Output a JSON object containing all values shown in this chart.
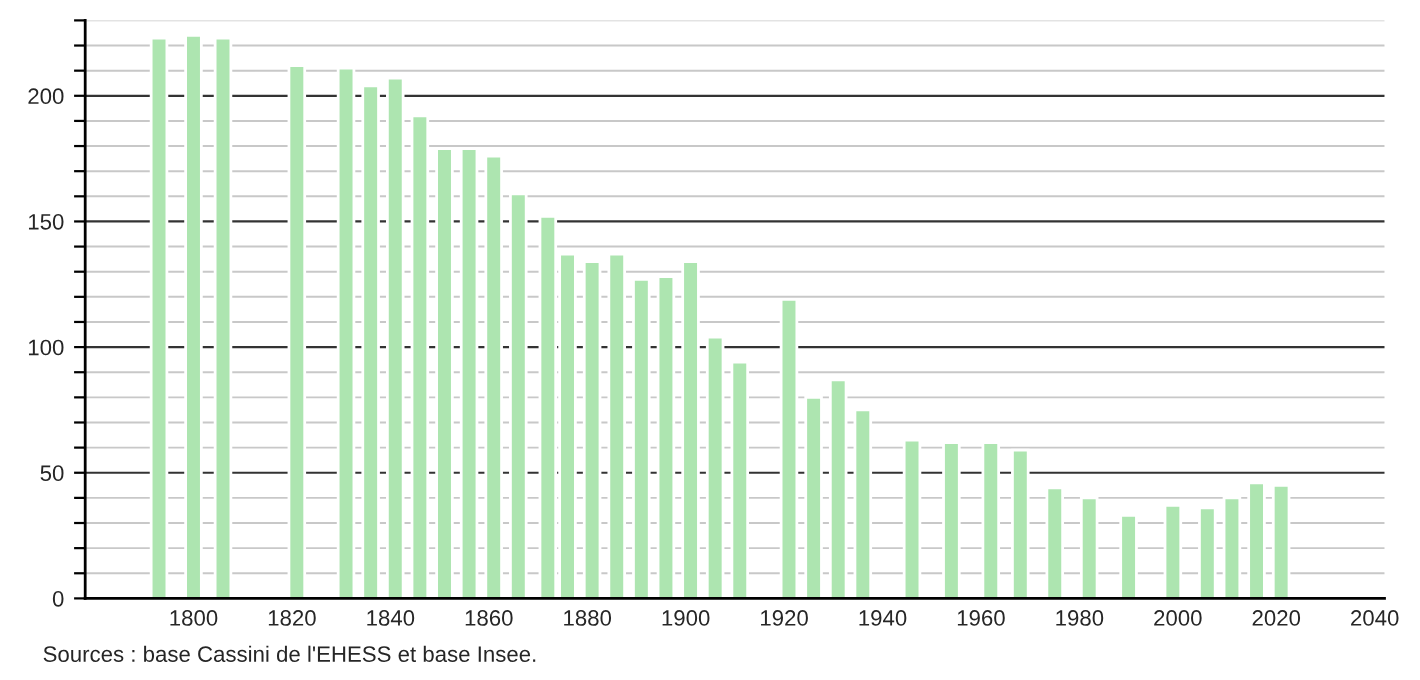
{
  "chart_data": {
    "type": "bar",
    "x": [
      1793,
      1800,
      1806,
      1821,
      1831,
      1836,
      1841,
      1846,
      1851,
      1856,
      1861,
      1866,
      1872,
      1876,
      1881,
      1886,
      1891,
      1896,
      1901,
      1906,
      1911,
      1921,
      1926,
      1931,
      1936,
      1946,
      1954,
      1962,
      1968,
      1975,
      1982,
      1990,
      1999,
      2006,
      2011,
      2016,
      2021
    ],
    "values": [
      223,
      224,
      223,
      212,
      211,
      204,
      207,
      192,
      179,
      179,
      176,
      161,
      152,
      137,
      134,
      137,
      127,
      128,
      134,
      104,
      94,
      119,
      80,
      87,
      75,
      63,
      62,
      62,
      59,
      44,
      40,
      33,
      37,
      36,
      40,
      46,
      45
    ],
    "color": "#ade5b0",
    "xlim": [
      1778,
      2042
    ],
    "xticks": [
      1800,
      1820,
      1840,
      1860,
      1880,
      1900,
      1920,
      1940,
      1960,
      1980,
      2000,
      2020,
      2040
    ],
    "ylim": [
      0,
      230
    ],
    "yticks": [
      0,
      {
        "value": 10,
        "label": null
      },
      {
        "value": 20,
        "label": null
      },
      {
        "value": 30,
        "label": null
      },
      {
        "value": 40,
        "label": null
      },
      50,
      {
        "value": 60,
        "label": null
      },
      {
        "value": 70,
        "label": null
      },
      {
        "value": 80,
        "label": null
      },
      {
        "value": 90,
        "label": null
      },
      100,
      {
        "value": 110,
        "label": null
      },
      {
        "value": 120,
        "label": null
      },
      {
        "value": 130,
        "label": null
      },
      {
        "value": 140,
        "label": null
      },
      150,
      {
        "value": 160,
        "label": null
      },
      {
        "value": 170,
        "label": null
      },
      {
        "value": 180,
        "label": null
      },
      {
        "value": 190,
        "label": null
      },
      200,
      {
        "value": 210,
        "label": null
      },
      {
        "value": 220,
        "label": null
      },
      {
        "value": 230,
        "label": null
      }
    ],
    "grid": "y",
    "annotations": [
      "Sources : base Cassini de l'EHESS et base Insee."
    ]
  }
}
